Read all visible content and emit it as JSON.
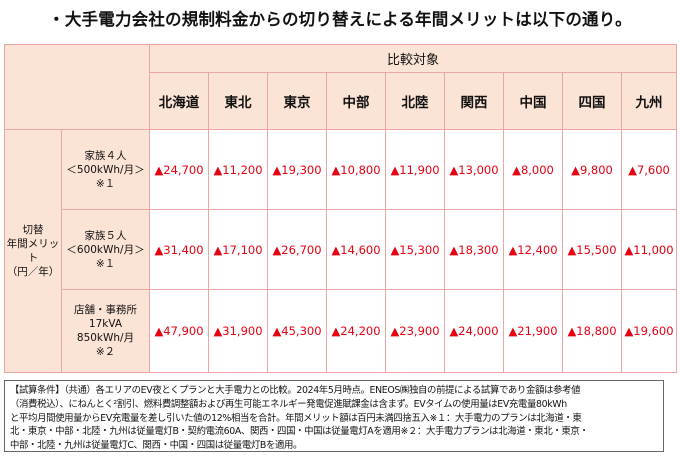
{
  "title": "・大手電力会社の規制料金からの切り替えによる年間メリットは以下の通り。",
  "table": {
    "compare_header": "比較対象",
    "row_group_label": [
      "切替",
      "年間メリット",
      "（円／年）"
    ],
    "regions": [
      "北海道",
      "東北",
      "東京",
      "中部",
      "北陸",
      "関西",
      "中国",
      "四国",
      "九州"
    ],
    "rows": [
      {
        "label": [
          "家族４人",
          "＜500kWh/月＞",
          "※１"
        ],
        "values": [
          "▲24,700",
          "▲11,200",
          "▲19,300",
          "▲10,800",
          "▲11,900",
          "▲13,000",
          "▲8,000",
          "▲9,800",
          "▲7,600"
        ]
      },
      {
        "label": [
          "家族５人",
          "＜600kWh/月＞",
          "※１"
        ],
        "values": [
          "▲31,400",
          "▲17,100",
          "▲26,700",
          "▲14,600",
          "▲15,300",
          "▲18,300",
          "▲12,400",
          "▲15,500",
          "▲11,000"
        ]
      },
      {
        "label": [
          "店舗・事務所",
          "17kVA",
          "850kWh/月",
          "※２"
        ],
        "values": [
          "▲47,900",
          "▲31,900",
          "▲45,300",
          "▲24,200",
          "▲23,900",
          "▲24,000",
          "▲21,900",
          "▲18,800",
          "▲19,600"
        ]
      }
    ]
  },
  "note": {
    "lines": [
      "【試算条件】（共通）各エリアのEV夜とくプランと大手電力との比較。2024年5月時点。ENEOS㈱独自の前提による試算であり金額は参考値",
      "（消費税込）、にねんとく²割引、燃料費調整額および再生可能エネルギー発電促進賦課金は含まず。EVタイムの使用量はEV充電量80kWh",
      "と平均月間使用量からEV充電量を差し引いた値の12%相当を合計。年間メリット額は百円未満四捨五入※１：大手電力のプランは北海道・東",
      "北・東京・中部・北陸・九州は従量電灯B・契約電流60A、関西・四国・中国は従量電灯Aを適用※２：大手電力プランは北海道・東北・東京・",
      "中部・北陸・九州は従量電灯C、関西・中国・四国は従量電灯Bを適用。"
    ]
  }
}
